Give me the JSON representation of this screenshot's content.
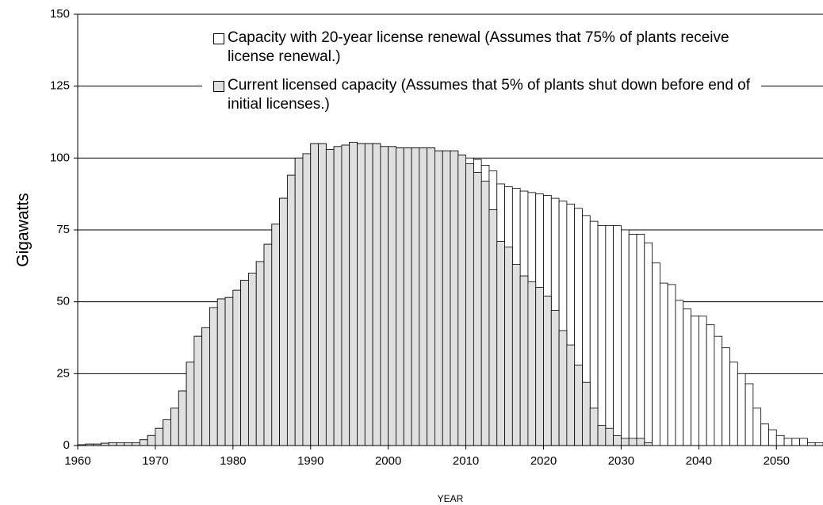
{
  "chart_data": {
    "type": "bar",
    "x_label": "YEAR",
    "y_label": "Gigawatts",
    "x": [
      1960,
      1961,
      1962,
      1963,
      1964,
      1965,
      1966,
      1967,
      1968,
      1969,
      1970,
      1971,
      1972,
      1973,
      1974,
      1975,
      1976,
      1977,
      1978,
      1979,
      1980,
      1981,
      1982,
      1983,
      1984,
      1985,
      1986,
      1987,
      1988,
      1989,
      1990,
      1991,
      1992,
      1993,
      1994,
      1995,
      1996,
      1997,
      1998,
      1999,
      2000,
      2001,
      2002,
      2003,
      2004,
      2005,
      2006,
      2007,
      2008,
      2009,
      2010,
      2011,
      2012,
      2013,
      2014,
      2015,
      2016,
      2017,
      2018,
      2019,
      2020,
      2021,
      2022,
      2023,
      2024,
      2025,
      2026,
      2027,
      2028,
      2029,
      2030,
      2031,
      2032,
      2033,
      2034,
      2035,
      2036,
      2037,
      2038,
      2039,
      2040,
      2041,
      2042,
      2043,
      2044,
      2045,
      2046,
      2047,
      2048,
      2049,
      2050,
      2051,
      2052,
      2053,
      2054,
      2055
    ],
    "series": [
      {
        "name": "Capacity with 20-year license renewal (Assumes that 75% of plants receive license renewal.)",
        "color": "#ffffff",
        "values": [
          0.3,
          0.5,
          0.5,
          0.8,
          1,
          1,
          1,
          1,
          2,
          3.5,
          6,
          9,
          13,
          19,
          29,
          38,
          41,
          48,
          51,
          51.5,
          54,
          57.5,
          60,
          64,
          70,
          77,
          86,
          94,
          100,
          101.5,
          105,
          105,
          103,
          104,
          104.5,
          105.5,
          105,
          105,
          105,
          104,
          104,
          103.5,
          103.5,
          103.5,
          103.5,
          103.5,
          102.5,
          102.5,
          102.5,
          101,
          100,
          99.5,
          97.5,
          95.5,
          91,
          90,
          89.5,
          88.5,
          88,
          87.5,
          87,
          86,
          85,
          84,
          82.5,
          80,
          78,
          76.5,
          76.5,
          76.5,
          75,
          73.5,
          73.5,
          70.5,
          63.5,
          56.5,
          56,
          50.5,
          47.5,
          45,
          45,
          42,
          38,
          34,
          29,
          25,
          21.5,
          13,
          7.5,
          5.5,
          3.5,
          2.5,
          2.5,
          2.5,
          1,
          1
        ]
      },
      {
        "name": "Current licensed capacity (Assumes that 5% of plants shut down before end of initial licenses.)",
        "color": "#e0e0e0",
        "values": [
          0.3,
          0.5,
          0.5,
          0.8,
          1,
          1,
          1,
          1,
          2,
          3.5,
          6,
          9,
          13,
          19,
          29,
          38,
          41,
          48,
          51,
          51.5,
          54,
          57.5,
          60,
          64,
          70,
          77,
          86,
          94,
          100,
          101.5,
          105,
          105,
          103,
          104,
          104.5,
          105.5,
          105,
          105,
          105,
          104,
          104,
          103.5,
          103.5,
          103.5,
          103.5,
          103.5,
          102.5,
          102.5,
          102.5,
          101,
          98,
          95,
          92,
          82,
          71,
          69,
          63,
          59,
          57,
          55,
          52,
          47,
          40,
          35,
          28,
          22,
          13,
          7,
          6,
          3.5,
          2.5,
          2.5,
          2.5,
          1,
          0,
          0,
          0,
          0,
          0,
          0,
          0,
          0,
          0,
          0,
          0,
          0,
          0,
          0,
          0,
          0,
          0,
          0,
          0,
          0,
          0,
          0
        ]
      }
    ],
    "xlim": [
      1960,
      2056
    ],
    "xticks": [
      1960,
      1970,
      1980,
      1990,
      2000,
      2010,
      2020,
      2030,
      2040,
      2050
    ],
    "ylim": [
      0,
      150
    ],
    "yticks": [
      0,
      25,
      50,
      75,
      100,
      125,
      150
    ],
    "grid": true
  }
}
